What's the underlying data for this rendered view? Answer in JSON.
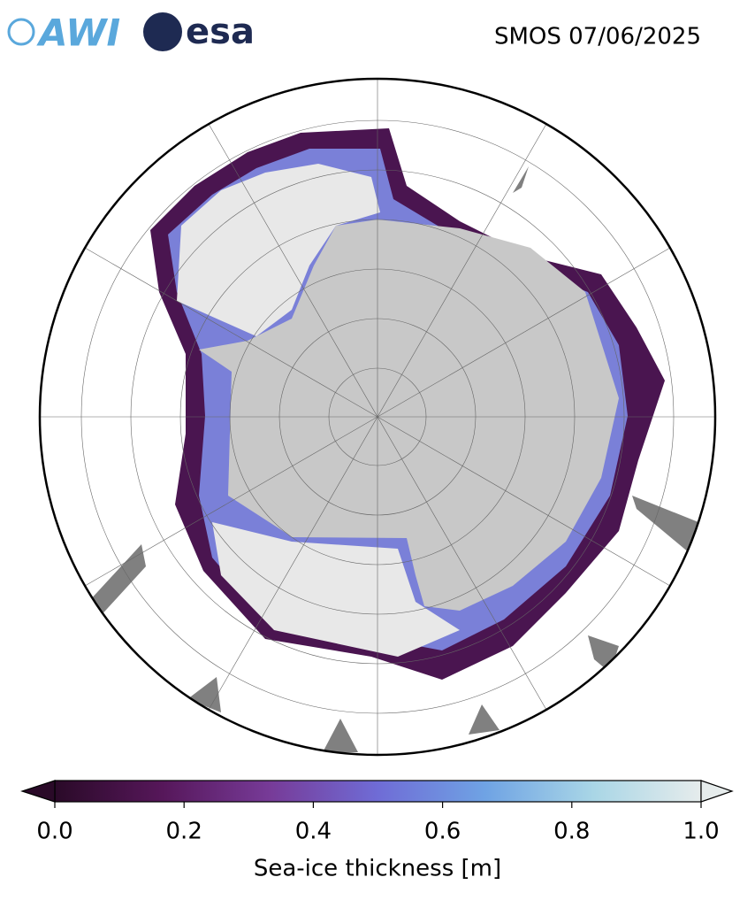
{
  "header": {
    "title": "SMOS 07/06/2025",
    "logos": [
      "AWI",
      "esa"
    ]
  },
  "colorbar": {
    "label": "Sea-ice thickness [m]",
    "lim": [
      0,
      1
    ],
    "ticks": [
      {
        "value": 0,
        "label": "0.0"
      },
      {
        "value": 0.2,
        "label": "0.2"
      },
      {
        "value": 0.4,
        "label": "0.4"
      },
      {
        "value": 0.6,
        "label": "0.6"
      },
      {
        "value": 0.8,
        "label": "0.8"
      },
      {
        "value": 1,
        "label": "1.0"
      }
    ],
    "colors": [
      "#2a0a28",
      "#56175a",
      "#773b98",
      "#6f6cd6",
      "#6fa3e4",
      "#a9d6e6",
      "#e6ecec"
    ]
  }
}
